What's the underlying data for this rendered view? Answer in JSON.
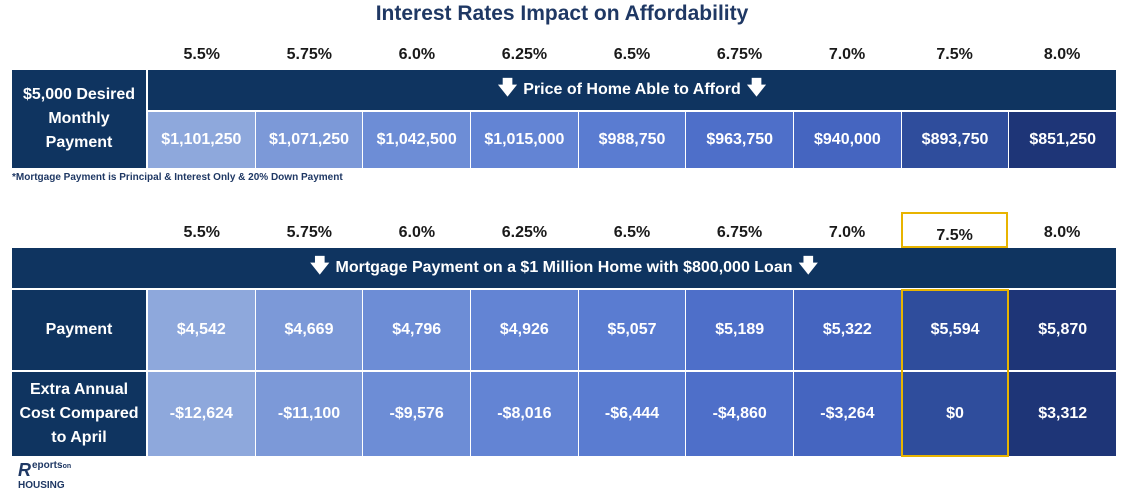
{
  "title": "Interest Rates Impact on Affordability",
  "table1": {
    "rates": [
      "5.5%",
      "5.75%",
      "6.0%",
      "6.25%",
      "6.5%",
      "6.75%",
      "7.0%",
      "7.5%",
      "8.0%"
    ],
    "label": "$5,000 Desired Monthly Payment",
    "banner": "Price of Home Able to Afford",
    "prices": [
      "$1,101,250",
      "$1,071,250",
      "$1,042,500",
      "$1,015,000",
      "$988,750",
      "$963,750",
      "$940,000",
      "$893,750",
      "$851,250"
    ],
    "footnote": "*Mortgage Payment is Principal & Interest Only & 20% Down Payment"
  },
  "table2": {
    "rates": [
      "5.5%",
      "5.75%",
      "6.0%",
      "6.25%",
      "6.5%",
      "6.75%",
      "7.0%",
      "7.5%",
      "8.0%"
    ],
    "highlight_rate": "7.5%",
    "banner": "Mortgage Payment on a $1 Million Home with $800,000 Loan",
    "rows": [
      {
        "label": "Payment",
        "values": [
          "$4,542",
          "$4,669",
          "$4,796",
          "$4,926",
          "$5,057",
          "$5,189",
          "$5,322",
          "$5,594",
          "$5,870"
        ]
      },
      {
        "label": "Extra Annual Cost Compared to April",
        "values": [
          "-$12,624",
          "-$11,100",
          "-$9,576",
          "-$8,016",
          "-$6,444",
          "-$4,860",
          "-$3,264",
          "$0",
          "$3,312"
        ]
      }
    ]
  },
  "logo": {
    "brand_top": "eports",
    "brand_on": "on",
    "brand_bottom": "HOUSING",
    "letter": "R"
  },
  "colors": {
    "header_navy": "#0f3460",
    "accent_gold": "#e8b400",
    "cell_gradient": [
      "#8ea8dc",
      "#7c99d8",
      "#6d8dd6",
      "#6384d4",
      "#5a7cd1",
      "#4e6fc9",
      "#4565c0",
      "#2f4d9c",
      "#1e3577"
    ]
  },
  "chart_data": {
    "type": "table",
    "title": "Interest Rates Impact on Affordability",
    "columns": [
      "5.5%",
      "5.75%",
      "6.0%",
      "6.25%",
      "6.5%",
      "6.75%",
      "7.0%",
      "7.5%",
      "8.0%"
    ],
    "tables": [
      {
        "header": "Price of Home Able to Afford",
        "row_label": "$5,000 Desired Monthly Payment",
        "values": [
          1101250,
          1071250,
          1042500,
          1015000,
          988750,
          963750,
          940000,
          893750,
          851250
        ]
      },
      {
        "header": "Mortgage Payment on a $1 Million Home with $800,000 Loan",
        "rows": [
          {
            "label": "Payment",
            "values": [
              4542,
              4669,
              4796,
              4926,
              5057,
              5189,
              5322,
              5594,
              5870
            ]
          },
          {
            "label": "Extra Annual Cost Compared to April",
            "values": [
              -12624,
              -11100,
              -9576,
              -8016,
              -6444,
              -4860,
              -3264,
              0,
              3312
            ]
          }
        ]
      }
    ]
  }
}
